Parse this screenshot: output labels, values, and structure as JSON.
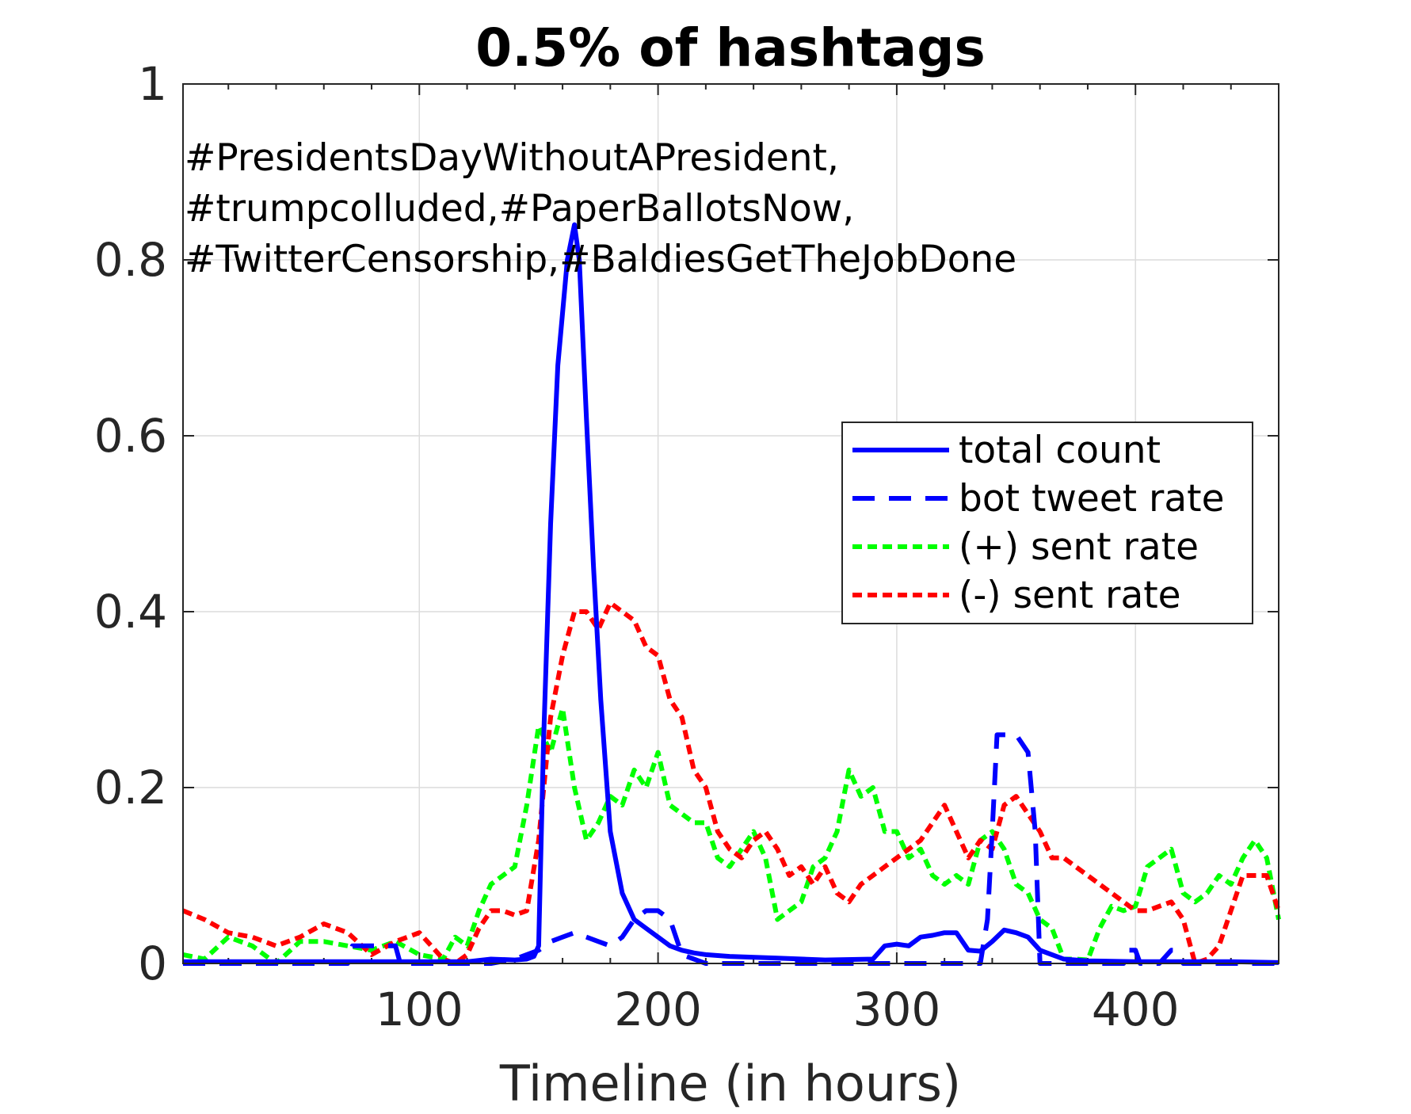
{
  "chart_data": {
    "type": "line",
    "title": "0.5% of hashtags",
    "xlabel": "Timeline (in hours)",
    "ylabel": "",
    "xlim": [
      1,
      460
    ],
    "ylim": [
      0,
      1
    ],
    "xticks": [
      100,
      200,
      300,
      400
    ],
    "xtick_labels": [
      "100",
      "200",
      "300",
      "400"
    ],
    "yticks": [
      0,
      0.2,
      0.4,
      0.6,
      0.8,
      1
    ],
    "ytick_labels": [
      "0",
      "0.2",
      "0.4",
      "0.6",
      "0.8",
      "1"
    ],
    "grid": true,
    "legend_position": "right",
    "annotation": [
      "#PresidentsDayWithoutAPresident,",
      "#trumpcolluded,#PaperBallotsNow,",
      "#TwitterCensorship,#BaldiesGetTheJobDone"
    ],
    "series": [
      {
        "name": "total count",
        "color": "#0000ff",
        "style": "solid",
        "x": [
          1,
          20,
          40,
          60,
          80,
          100,
          120,
          130,
          140,
          145,
          148,
          150,
          152,
          155,
          158,
          162,
          165,
          167,
          170,
          173,
          176,
          180,
          185,
          190,
          195,
          200,
          205,
          210,
          215,
          220,
          230,
          250,
          270,
          290,
          295,
          300,
          305,
          310,
          315,
          320,
          325,
          330,
          335,
          340,
          345,
          350,
          355,
          360,
          365,
          370,
          380,
          400,
          420,
          440,
          460
        ],
        "y": [
          0.002,
          0.002,
          0.002,
          0.002,
          0.002,
          0.002,
          0.002,
          0.005,
          0.004,
          0.005,
          0.008,
          0.02,
          0.25,
          0.5,
          0.68,
          0.8,
          0.84,
          0.8,
          0.62,
          0.45,
          0.3,
          0.15,
          0.08,
          0.05,
          0.04,
          0.03,
          0.02,
          0.015,
          0.012,
          0.01,
          0.008,
          0.006,
          0.004,
          0.005,
          0.02,
          0.022,
          0.02,
          0.03,
          0.032,
          0.035,
          0.035,
          0.015,
          0.014,
          0.025,
          0.038,
          0.035,
          0.03,
          0.015,
          0.01,
          0.005,
          0.003,
          0.002,
          0.002,
          0.002,
          0.001
        ]
      },
      {
        "name": "bot tweet rate",
        "color": "#0000ff",
        "style": "dashed",
        "x": [
          1,
          70,
          72,
          90,
          92,
          130,
          140,
          150,
          155,
          160,
          165,
          170,
          175,
          180,
          185,
          190,
          195,
          200,
          205,
          210,
          220,
          300,
          335,
          338,
          340,
          342,
          345,
          350,
          355,
          358,
          360,
          395,
          397,
          400,
          402,
          410,
          415,
          417,
          420,
          460
        ],
        "y": [
          0,
          0,
          0.02,
          0.02,
          0,
          0,
          0.005,
          0.015,
          0.025,
          0.03,
          0.035,
          0.03,
          0.025,
          0.02,
          0.03,
          0.05,
          0.06,
          0.06,
          0.05,
          0.01,
          0,
          0,
          0,
          0.05,
          0.15,
          0.26,
          0.26,
          0.26,
          0.24,
          0.15,
          0,
          0,
          0.015,
          0.015,
          0,
          0,
          0.015,
          0.015,
          0,
          0
        ]
      },
      {
        "name": "(+) sent rate",
        "color": "#00ff00",
        "style": "dashed",
        "x": [
          1,
          10,
          20,
          30,
          40,
          50,
          60,
          70,
          80,
          90,
          100,
          110,
          115,
          120,
          125,
          130,
          135,
          140,
          145,
          150,
          155,
          160,
          165,
          170,
          175,
          180,
          185,
          190,
          195,
          200,
          205,
          210,
          215,
          220,
          225,
          230,
          235,
          240,
          245,
          250,
          255,
          260,
          265,
          270,
          275,
          280,
          285,
          290,
          295,
          300,
          305,
          310,
          315,
          320,
          325,
          330,
          335,
          340,
          345,
          350,
          355,
          360,
          365,
          370,
          375,
          380,
          385,
          390,
          395,
          400,
          405,
          410,
          415,
          420,
          425,
          430,
          435,
          440,
          445,
          450,
          455,
          460
        ],
        "y": [
          0.01,
          0.005,
          0.03,
          0.02,
          0.0,
          0.025,
          0.025,
          0.02,
          0.015,
          0.025,
          0.01,
          0.005,
          0.03,
          0.02,
          0.06,
          0.09,
          0.1,
          0.11,
          0.18,
          0.27,
          0.24,
          0.29,
          0.2,
          0.14,
          0.16,
          0.19,
          0.18,
          0.22,
          0.2,
          0.24,
          0.18,
          0.17,
          0.16,
          0.16,
          0.12,
          0.11,
          0.13,
          0.15,
          0.12,
          0.05,
          0.06,
          0.07,
          0.11,
          0.12,
          0.15,
          0.22,
          0.19,
          0.2,
          0.15,
          0.15,
          0.12,
          0.13,
          0.1,
          0.09,
          0.1,
          0.09,
          0.14,
          0.15,
          0.13,
          0.09,
          0.08,
          0.05,
          0.04,
          0.005,
          0.005,
          0.004,
          0.04,
          0.065,
          0.06,
          0.065,
          0.11,
          0.12,
          0.13,
          0.08,
          0.07,
          0.08,
          0.1,
          0.09,
          0.12,
          0.14,
          0.12,
          0.05
        ]
      },
      {
        "name": "(-) sent rate",
        "color": "#ff0000",
        "style": "dashed",
        "x": [
          1,
          10,
          20,
          30,
          40,
          50,
          60,
          70,
          80,
          90,
          100,
          105,
          110,
          115,
          120,
          125,
          130,
          135,
          140,
          145,
          150,
          155,
          160,
          165,
          170,
          175,
          180,
          185,
          190,
          195,
          200,
          205,
          210,
          215,
          220,
          225,
          230,
          235,
          240,
          245,
          250,
          255,
          260,
          265,
          270,
          275,
          280,
          285,
          290,
          295,
          300,
          305,
          310,
          315,
          320,
          325,
          330,
          335,
          340,
          345,
          350,
          355,
          360,
          365,
          370,
          375,
          380,
          385,
          390,
          395,
          400,
          405,
          410,
          415,
          420,
          425,
          430,
          435,
          440,
          445,
          450,
          455,
          460
        ],
        "y": [
          0.06,
          0.05,
          0.035,
          0.03,
          0.02,
          0.03,
          0.045,
          0.035,
          0.01,
          0.025,
          0.035,
          0.02,
          0.005,
          0.0,
          0.01,
          0.04,
          0.06,
          0.06,
          0.055,
          0.06,
          0.14,
          0.28,
          0.35,
          0.4,
          0.4,
          0.38,
          0.41,
          0.4,
          0.39,
          0.36,
          0.35,
          0.3,
          0.28,
          0.22,
          0.2,
          0.15,
          0.13,
          0.12,
          0.14,
          0.15,
          0.13,
          0.1,
          0.11,
          0.09,
          0.11,
          0.08,
          0.07,
          0.09,
          0.1,
          0.11,
          0.12,
          0.13,
          0.14,
          0.16,
          0.18,
          0.15,
          0.12,
          0.14,
          0.13,
          0.18,
          0.19,
          0.17,
          0.15,
          0.12,
          0.12,
          0.11,
          0.1,
          0.09,
          0.08,
          0.07,
          0.06,
          0.06,
          0.065,
          0.07,
          0.05,
          0.0,
          0.005,
          0.02,
          0.06,
          0.1,
          0.1,
          0.1,
          0.06
        ]
      }
    ]
  }
}
